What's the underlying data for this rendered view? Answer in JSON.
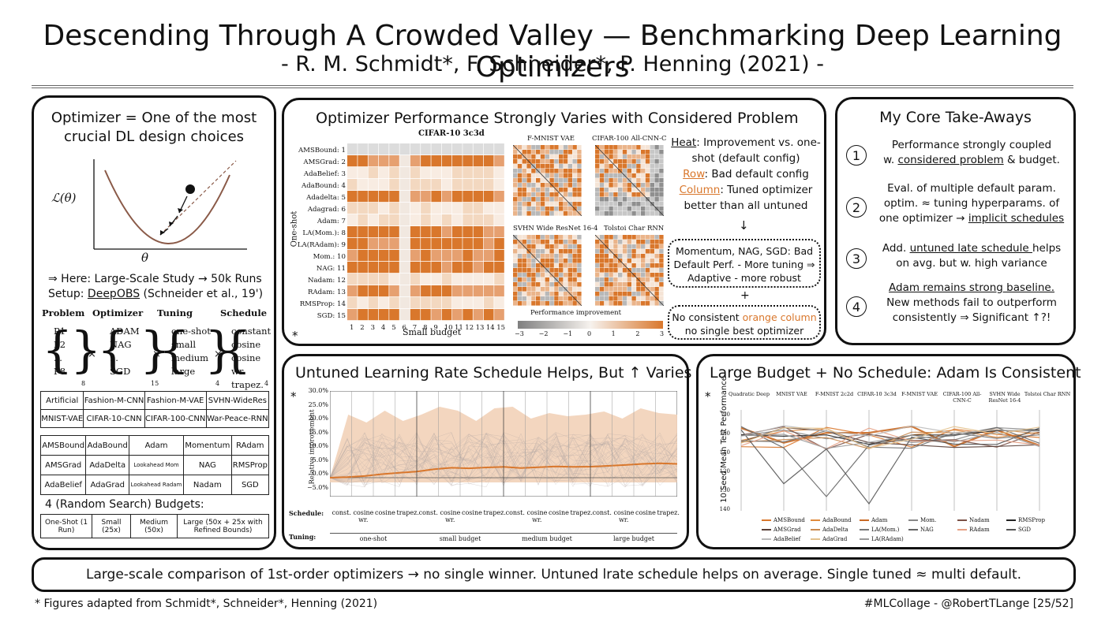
{
  "header": {
    "title": "Descending Through A Crowded Valley — Benchmarking Deep Learning Optimizers",
    "subtitle": "- R. M. Schmidt*, F. Schneider*, P. Henning (2021) -"
  },
  "left_panel": {
    "title_line1": "Optimizer = One of the most",
    "title_line2": "crucial DL design choices",
    "axis_y": "ℒ(θ)",
    "axis_x": "θ",
    "study_line": "⇒ Here: Large-Scale Study → 50k Runs",
    "setup_prefix": "Setup: ",
    "setup_link": "DeepOBS",
    "setup_suffix": " (Schneider et al., 19')",
    "col_headers": [
      "Problem",
      "Optimizer",
      "Tuning",
      "Schedule"
    ],
    "problem": [
      "P1",
      "P2",
      "...",
      "P8"
    ],
    "problem_sub": "8",
    "optimizer": [
      "ADAM",
      "NAG",
      "...",
      "SGD"
    ],
    "optimizer_sub": "15",
    "tuning": [
      "one-shot",
      "small",
      "medium",
      "large"
    ],
    "tuning_sub": "4",
    "schedule": [
      "constant",
      "cosine",
      "cosine wr",
      "trapez."
    ],
    "schedule_sub": "4",
    "times": "×",
    "problems_table": [
      [
        "Artificial",
        "Fashion-M-CNN",
        "Fashion-M-VAE",
        "SVHN-WideRes"
      ],
      [
        "MNIST-VAE",
        "CIFAR-10-CNN",
        "CIFAR-100-CNN",
        "War-Peace-RNN"
      ]
    ],
    "optimizers_table": [
      [
        "AMSBound",
        "AdaBound",
        "Adam",
        "Momentum",
        "RAdam"
      ],
      [
        "AMSGrad",
        "AdaDelta",
        "Lookahead Mom",
        "NAG",
        "RMSProp"
      ],
      [
        "AdaBelief",
        "AdaGrad",
        "Lookahead Radam",
        "Nadam",
        "SGD"
      ]
    ],
    "budgets_label": "4 (Random Search) Budgets:",
    "budgets_table": [
      "One-Shot (1 Run)",
      "Small (25x)",
      "Medium (50x)",
      "Large (50x + 25x with Refined Bounds)"
    ]
  },
  "heatmap_panel": {
    "title": "Optimizer Performance Strongly Varies with Considered Problem",
    "heat_title": "CIFAR-10 3c3d",
    "ylabel": "One-shot",
    "xlabel": "Small budget",
    "rows": [
      "AMSBound: 1",
      "AMSGrad: 2",
      "AdaBelief: 3",
      "AdaBound: 4",
      "Adadelta: 5",
      "Adagrad: 6",
      "Adam: 7",
      "LA(Mom.): 8",
      "LA(RAdam): 9",
      "Mom.: 10",
      "NAG: 11",
      "Nadam: 12",
      "RAdam: 13",
      "RMSProp: 14",
      "SGD: 15"
    ],
    "cols": [
      "1",
      "2",
      "3",
      "4",
      "5",
      "6",
      "7",
      "8",
      "9",
      "10",
      "11",
      "12",
      "13",
      "14",
      "15"
    ],
    "small_titles": [
      "F-MNIST VAE",
      "CIFAR-100 All-CNN-C",
      "SVHN Wide ResNet 16-4",
      "Tolstoi Char RNN"
    ],
    "colorbar_label": "Performance improvement",
    "colorbar_ticks": [
      "−3",
      "−2",
      "−1",
      "0",
      "1",
      "2",
      "3"
    ],
    "note1_heat": "Heat",
    "note1_rest": ": Improvement vs. one-shot (default config)",
    "note2_row": "Row",
    "note2_rest": ": Bad default config",
    "note3_col": "Column",
    "note3_rest": ": Tuned optimizer better than all untuned",
    "arrow": "↓",
    "box1": "Momentum, NAG, SGD: Bad Default Perf. - More tuning ⇒ Adaptive - more robust",
    "plus": "+",
    "box2_prefix": "No consistent ",
    "box2_orange": "orange column",
    "box2_suffix": "no single best optimizer",
    "star": "*"
  },
  "takeaways_panel": {
    "title": "My Core Take-Aways",
    "items": [
      {
        "num": "1",
        "line1": "Performance strongly coupled",
        "line2_pre": "w. ",
        "line2_u": "considered problem",
        "line2_post": " & budget."
      },
      {
        "num": "2",
        "line1": "Eval. of multiple default param.",
        "line2": "optim. ≈ tuning hyperparams. of",
        "line3_pre": "one optimizer → ",
        "line3_u": "implicit schedules"
      },
      {
        "num": "3",
        "line1_pre": "Add. ",
        "line1_u": "untuned late schedule ",
        "line1_post": "helps",
        "line2": "on avg. but w. high variance"
      },
      {
        "num": "4",
        "line1_u": "Adam remains strong baseline.",
        "line2": "New methods fail to outperform",
        "line3": "consistently ⇒ Significant ↑?!"
      }
    ]
  },
  "schedule_panel": {
    "title": "Untuned Learning Rate Schedule Helps, But ↑ Varies",
    "star": "*",
    "ylabel": "Relative improvement",
    "yticks": [
      "30.0%",
      "25.0%",
      "20.0%",
      "15.0%",
      "10.0%",
      "5.0%",
      "0.0%",
      "−5.0%"
    ],
    "schedule_label": "Schedule:",
    "tuning_label": "Tuning:",
    "schedules": [
      "const.",
      "cosine wr.",
      "cosine",
      "trapez."
    ],
    "tunings": [
      "one-shot",
      "small budget",
      "medium budget",
      "large budget"
    ]
  },
  "budget_panel": {
    "title": "Large Budget + No Schedule: Adam Is Consistent",
    "star": "*",
    "ylabel": "10 Seed Mean Test Performance",
    "problems": [
      "Quadratic Deep",
      "MNIST VAE",
      "F-MNIST 2c2d",
      "CIFAR-10 3c3d",
      "F-MNIST VAE",
      "CIFAR-100 All-CNN-C",
      "SVHN Wide ResNet 16-4",
      "Tolstoi Char RNN"
    ],
    "left_ticks": [
      "90",
      "100",
      "110",
      "120",
      "130",
      "140"
    ],
    "legend": [
      "AMSBound",
      "AdaBound",
      "Adam",
      "Mom.",
      "Nadam",
      "RMSProp",
      "AMSGrad",
      "AdaDelta",
      "LA(Mom.)",
      "NAG",
      "RAdam",
      "SGD",
      "AdaBelief",
      "AdaGrad",
      "LA(RAdam)"
    ],
    "legend_colors": [
      "#d9772c",
      "#e08a3c",
      "#c96a25",
      "#888888",
      "#7a5046",
      "#222222",
      "#5a4038",
      "#c98a50",
      "#777777",
      "#666666",
      "#e6a084",
      "#555555",
      "#bbbbbb",
      "#e3c28e",
      "#999999"
    ]
  },
  "footer": {
    "summary": "Large-scale comparison of 1st-order optimizers → no single winner. Untuned lrate schedule helps on average. Single tuned ≈ multi default.",
    "left_note": "* Figures adapted from Schmidt*, Schneider*, Henning (2021)",
    "right_note": "#MLCollage - @RobertTLange [25/52]"
  },
  "colors": {
    "accent": "#d9772c",
    "ink": "#111111",
    "rule": "#666666"
  }
}
